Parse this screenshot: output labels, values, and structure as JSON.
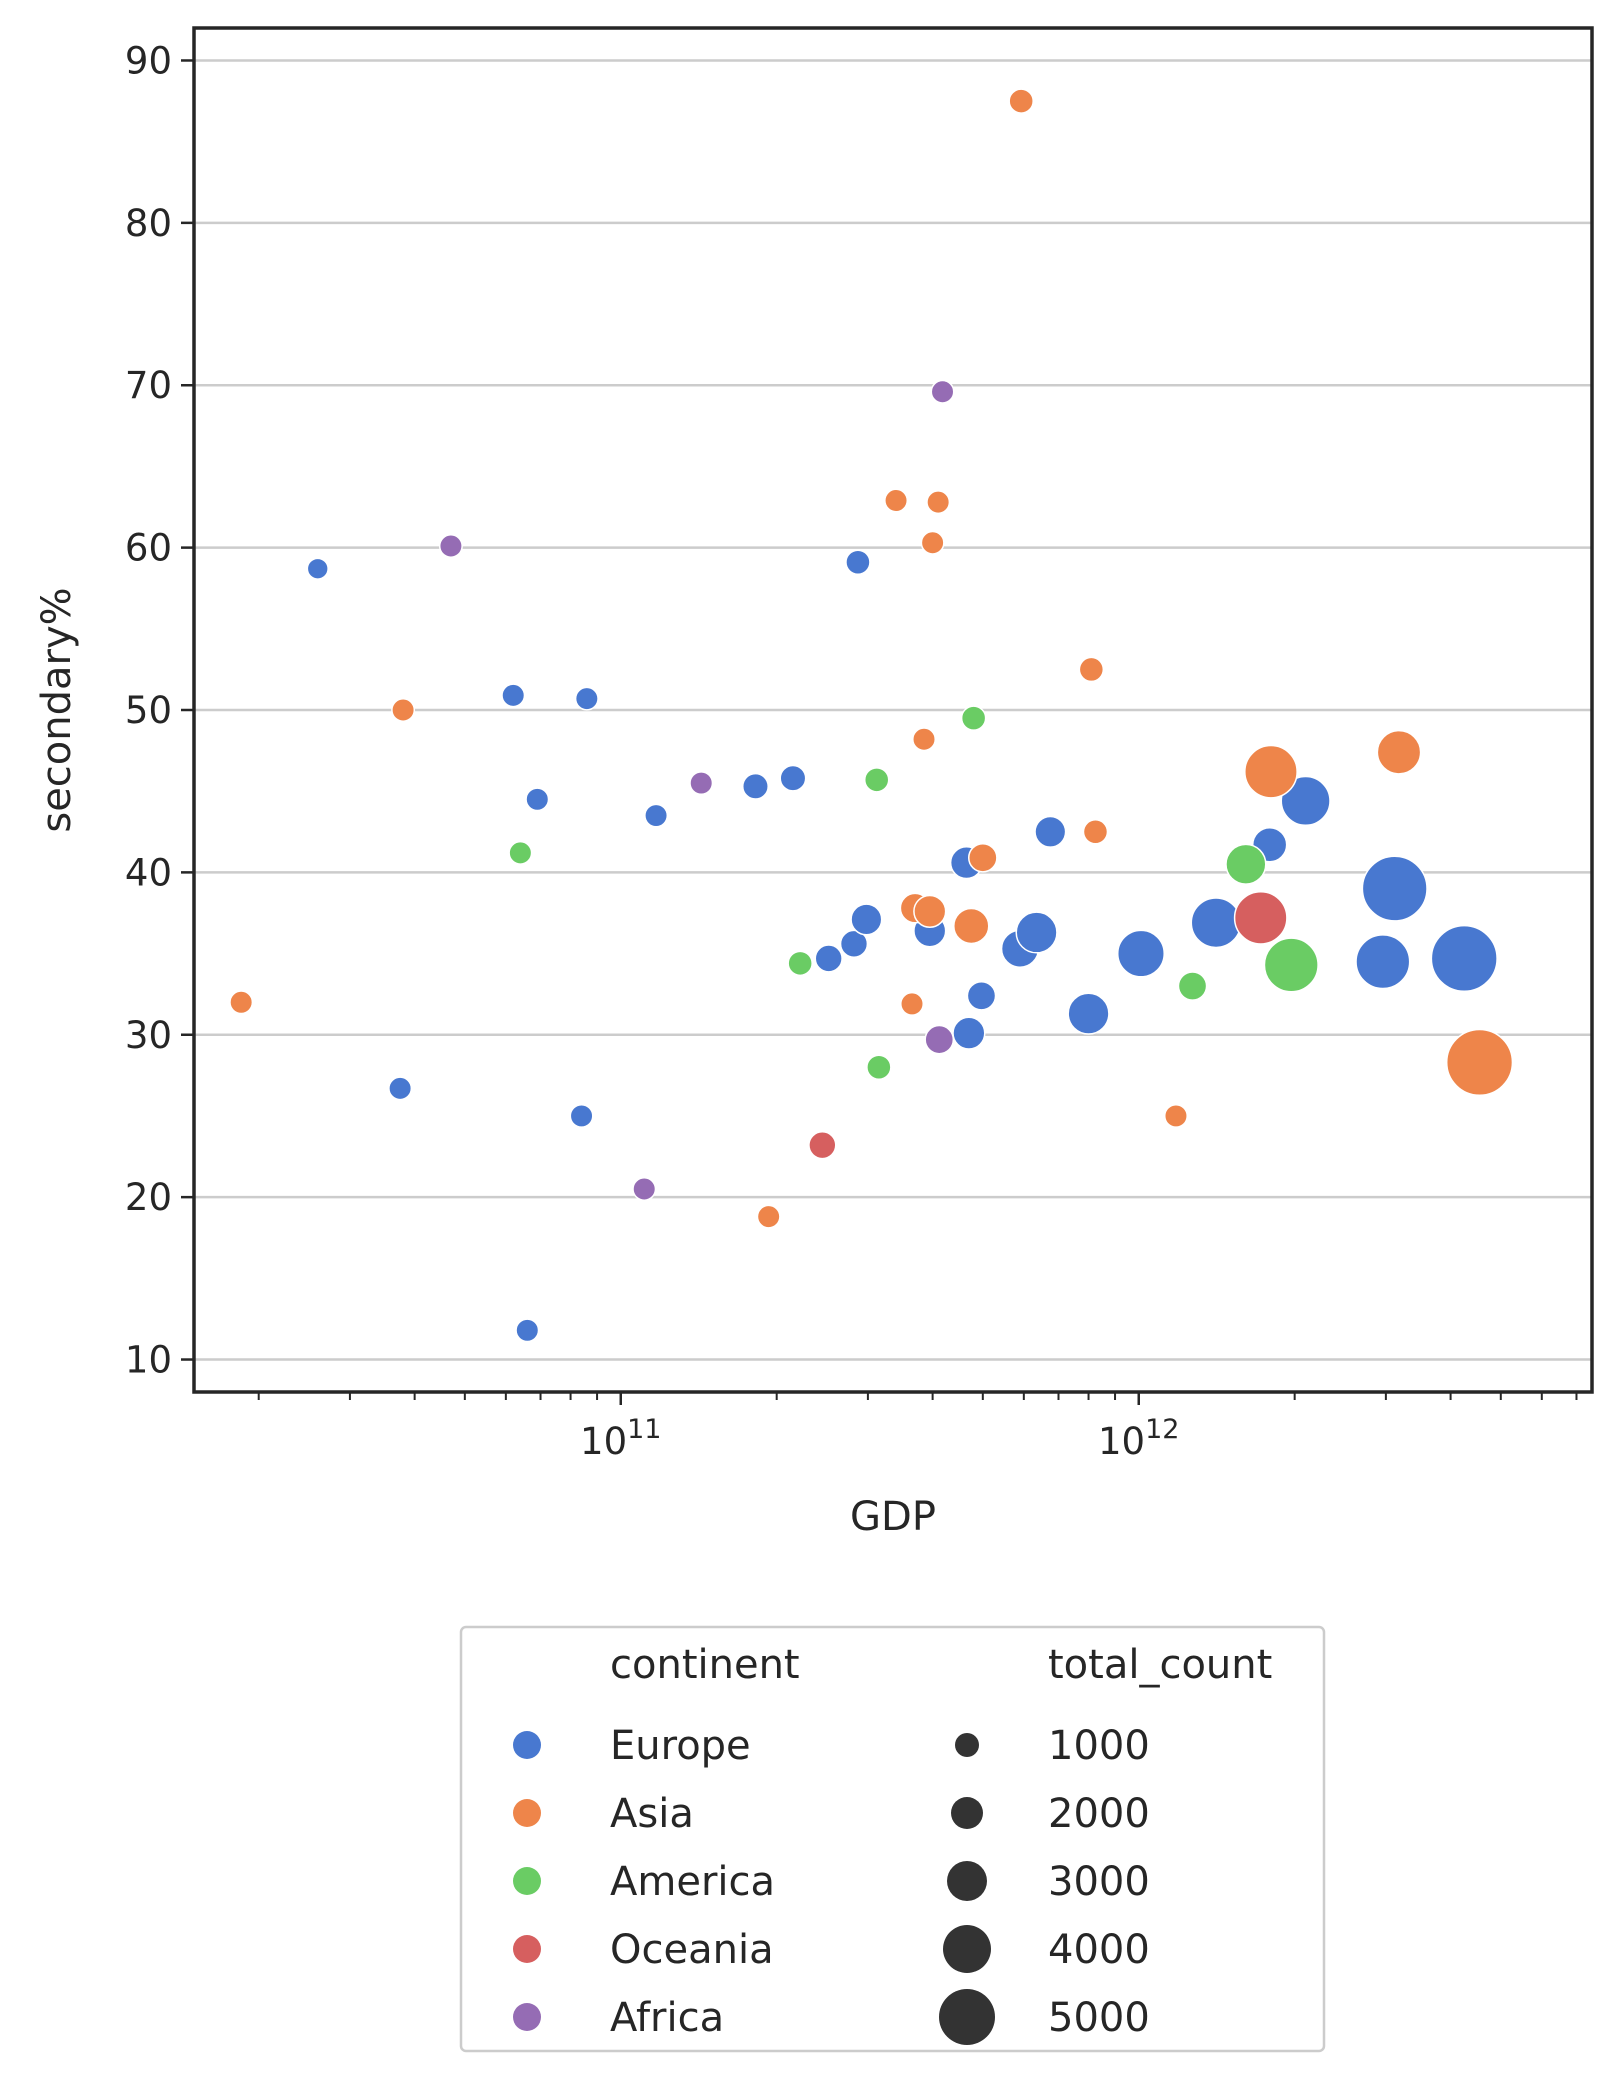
{
  "chart_data": {
    "type": "scatter",
    "xlabel": "GDP",
    "ylabel": "secondary%",
    "xscale": "log",
    "xlim": [
      15000000000,
      7500000000000
    ],
    "ylim": [
      8,
      92
    ],
    "grid": "horizontal",
    "x_tick_labels": [
      {
        "value": 100000000000,
        "base": "10",
        "exp": "11"
      },
      {
        "value": 1000000000000,
        "base": "10",
        "exp": "12"
      }
    ],
    "y_ticks": [
      "10",
      "20",
      "30",
      "40",
      "50",
      "60",
      "70",
      "80",
      "90"
    ],
    "legend": {
      "placement": "bottom-center",
      "hue_title": "continent",
      "size_title": "total_count",
      "hue_entries": [
        {
          "label": "Europe",
          "color": "#4878d0"
        },
        {
          "label": "Asia",
          "color": "#ee854a"
        },
        {
          "label": "America",
          "color": "#6acc64"
        },
        {
          "label": "Oceania",
          "color": "#d65f5f"
        },
        {
          "label": "Africa",
          "color": "#956cb4"
        }
      ],
      "size_entries": [
        {
          "label": "1000",
          "value": 1000
        },
        {
          "label": "2000",
          "value": 2000
        },
        {
          "label": "3000",
          "value": 3000
        },
        {
          "label": "4000",
          "value": 4000
        },
        {
          "label": "5000",
          "value": 5000
        }
      ]
    },
    "series": [
      {
        "name": "Europe",
        "color": "#4878d0",
        "points": [
          {
            "x": 26000000000,
            "y": 58.7,
            "size": 300
          },
          {
            "x": 37500000000,
            "y": 26.7,
            "size": 350
          },
          {
            "x": 62000000000,
            "y": 50.9,
            "size": 350
          },
          {
            "x": 66000000000,
            "y": 11.8,
            "size": 350
          },
          {
            "x": 69000000000,
            "y": 44.5,
            "size": 350
          },
          {
            "x": 84000000000,
            "y": 25.0,
            "size": 350
          },
          {
            "x": 86000000000,
            "y": 50.7,
            "size": 350
          },
          {
            "x": 117000000000,
            "y": 43.5,
            "size": 350
          },
          {
            "x": 182000000000,
            "y": 45.3,
            "size": 450
          },
          {
            "x": 215000000000,
            "y": 45.8,
            "size": 450
          },
          {
            "x": 252000000000,
            "y": 34.7,
            "size": 500
          },
          {
            "x": 282000000000,
            "y": 35.6,
            "size": 500
          },
          {
            "x": 287000000000,
            "y": 59.1,
            "size": 400
          },
          {
            "x": 298000000000,
            "y": 37.1,
            "size": 650
          },
          {
            "x": 395000000000,
            "y": 36.4,
            "size": 700
          },
          {
            "x": 465000000000,
            "y": 40.6,
            "size": 700
          },
          {
            "x": 470000000000,
            "y": 30.1,
            "size": 700
          },
          {
            "x": 497000000000,
            "y": 32.4,
            "size": 550
          },
          {
            "x": 590000000000,
            "y": 35.3,
            "size": 950
          },
          {
            "x": 635000000000,
            "y": 36.3,
            "size": 1150
          },
          {
            "x": 675000000000,
            "y": 42.5,
            "size": 650
          },
          {
            "x": 800000000000,
            "y": 31.3,
            "size": 1150
          },
          {
            "x": 1010000000000,
            "y": 35.0,
            "size": 1500
          },
          {
            "x": 1410000000000,
            "y": 36.9,
            "size": 1700
          },
          {
            "x": 1790000000000,
            "y": 41.7,
            "size": 800
          },
          {
            "x": 2100000000000,
            "y": 44.4,
            "size": 1650
          },
          {
            "x": 2960000000000,
            "y": 34.5,
            "size": 2000
          },
          {
            "x": 3120000000000,
            "y": 39.0,
            "size": 2900
          },
          {
            "x": 4250000000000,
            "y": 34.7,
            "size": 3000
          }
        ]
      },
      {
        "name": "Asia",
        "color": "#ee854a",
        "points": [
          {
            "x": 18500000000,
            "y": 32.0,
            "size": 350
          },
          {
            "x": 38000000000,
            "y": 50.0,
            "size": 350
          },
          {
            "x": 193000000000,
            "y": 18.8,
            "size": 350
          },
          {
            "x": 340000000000,
            "y": 62.9,
            "size": 350
          },
          {
            "x": 365000000000,
            "y": 31.9,
            "size": 350
          },
          {
            "x": 370000000000,
            "y": 37.8,
            "size": 600
          },
          {
            "x": 385000000000,
            "y": 48.2,
            "size": 350
          },
          {
            "x": 395000000000,
            "y": 37.6,
            "size": 700
          },
          {
            "x": 400000000000,
            "y": 60.3,
            "size": 350
          },
          {
            "x": 410000000000,
            "y": 62.8,
            "size": 350
          },
          {
            "x": 475000000000,
            "y": 36.7,
            "size": 850
          },
          {
            "x": 500000000000,
            "y": 40.9,
            "size": 550
          },
          {
            "x": 593000000000,
            "y": 87.5,
            "size": 400
          },
          {
            "x": 810000000000,
            "y": 52.5,
            "size": 400
          },
          {
            "x": 825000000000,
            "y": 42.5,
            "size": 400
          },
          {
            "x": 1180000000000,
            "y": 25.0,
            "size": 350
          },
          {
            "x": 1800000000000,
            "y": 46.2,
            "size": 1900
          },
          {
            "x": 3180000000000,
            "y": 47.4,
            "size": 1300
          },
          {
            "x": 4550000000000,
            "y": 28.3,
            "size": 3000
          }
        ]
      },
      {
        "name": "America",
        "color": "#6acc64",
        "points": [
          {
            "x": 64000000000,
            "y": 41.2,
            "size": 350
          },
          {
            "x": 222000000000,
            "y": 34.4,
            "size": 400
          },
          {
            "x": 312000000000,
            "y": 45.7,
            "size": 400
          },
          {
            "x": 315000000000,
            "y": 28.0,
            "size": 400
          },
          {
            "x": 480000000000,
            "y": 49.5,
            "size": 400
          },
          {
            "x": 1270000000000,
            "y": 33.0,
            "size": 550
          },
          {
            "x": 1610000000000,
            "y": 40.5,
            "size": 1100
          },
          {
            "x": 1970000000000,
            "y": 34.3,
            "size": 2000
          }
        ]
      },
      {
        "name": "Oceania",
        "color": "#d65f5f",
        "points": [
          {
            "x": 245000000000,
            "y": 23.2,
            "size": 500
          },
          {
            "x": 1720000000000,
            "y": 37.2,
            "size": 1900
          }
        ]
      },
      {
        "name": "Africa",
        "color": "#956cb4",
        "points": [
          {
            "x": 47000000000,
            "y": 60.1,
            "size": 350
          },
          {
            "x": 111000000000,
            "y": 20.5,
            "size": 350
          },
          {
            "x": 143000000000,
            "y": 45.5,
            "size": 350
          },
          {
            "x": 412000000000,
            "y": 29.7,
            "size": 550
          },
          {
            "x": 418000000000,
            "y": 69.6,
            "size": 350
          }
        ]
      }
    ]
  }
}
